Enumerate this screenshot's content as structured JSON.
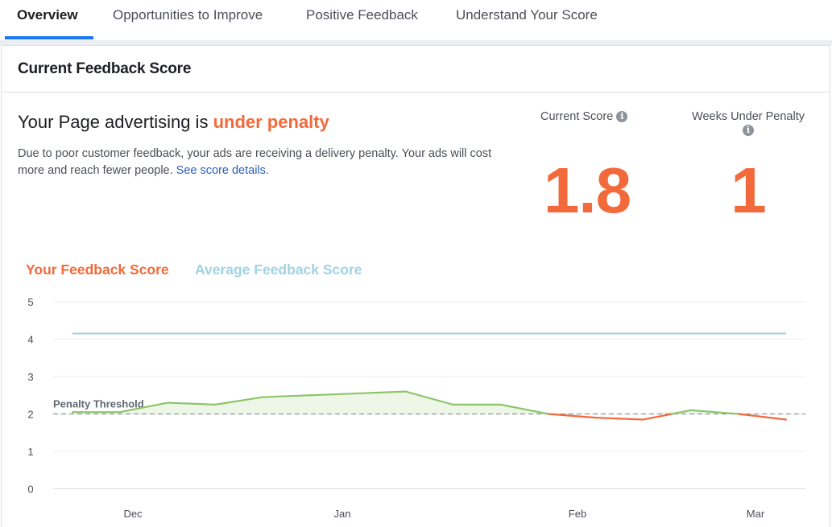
{
  "tabs": [
    {
      "label": "Overview",
      "active": true
    },
    {
      "label": "Opportunities to Improve",
      "active": false
    },
    {
      "label": "Positive Feedback",
      "active": false
    },
    {
      "label": "Understand Your Score",
      "active": false
    }
  ],
  "card": {
    "title": "Current Feedback Score",
    "status_prefix": "Your Page advertising is ",
    "status_word": "under penalty",
    "description": "Due to poor customer feedback, your ads are receiving a delivery penalty. Your ads will cost more and reach fewer people. ",
    "details_link": "See score details."
  },
  "stats": {
    "current_score_label": "Current Score",
    "current_score": "1.8",
    "weeks_label": "Weeks Under Penalty",
    "weeks": "1"
  },
  "colors": {
    "accent": "#f26a3b",
    "average": "#9fd3e3",
    "above_threshold": "#8dc56a",
    "link": "#2b5eb9",
    "tab_active": "#1877f2"
  },
  "chart_data": {
    "type": "line",
    "legend": [
      "Your Feedback Score",
      "Average Feedback Score"
    ],
    "x_tick_labels": [
      "Dec",
      "Jan",
      "Feb",
      "Mar"
    ],
    "y_ticks": [
      0,
      1,
      2,
      3,
      4,
      5
    ],
    "ylim": [
      0,
      5
    ],
    "grid": true,
    "threshold": {
      "label": "Penalty Threshold",
      "value": 2
    },
    "series": [
      {
        "name": "Your Feedback Score",
        "x": [
          "Nov 24",
          "Dec 1",
          "Dec 8",
          "Dec 15",
          "Dec 22",
          "Dec 29",
          "Jan 5",
          "Jan 12",
          "Jan 19",
          "Jan 26",
          "Feb 2",
          "Feb 9",
          "Feb 16",
          "Feb 23",
          "Mar 2",
          "Mar 9"
        ],
        "values": [
          2.05,
          2.05,
          2.3,
          2.25,
          2.45,
          2.5,
          2.55,
          2.6,
          2.25,
          2.25,
          2.0,
          1.9,
          1.85,
          2.1,
          2.0,
          1.85
        ]
      },
      {
        "name": "Average Feedback Score",
        "x": [
          "Nov 24",
          "Mar 9"
        ],
        "values": [
          4.15,
          4.15
        ]
      }
    ]
  }
}
